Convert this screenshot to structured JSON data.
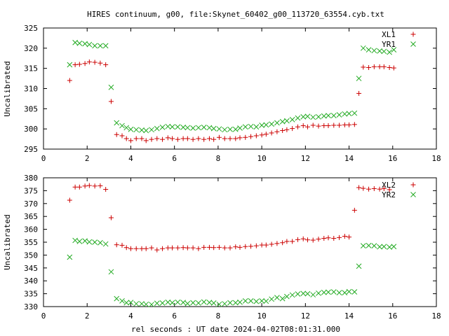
{
  "title": "HIRES continuum, g00, file:Skynet_60402_g00_113720_63554.cyb.txt",
  "colors": {
    "series_a": "#cc0000",
    "series_b": "#22aa22",
    "axes": "#000000"
  },
  "chart_data": [
    {
      "type": "scatter",
      "ylabel": "Uncalibrated",
      "xlabel": "",
      "xlim": [
        0,
        18
      ],
      "ylim": [
        295,
        325
      ],
      "xticks": [
        "0",
        "2",
        "4",
        "6",
        "8",
        "10",
        "12",
        "14",
        "16",
        "18"
      ],
      "yticks": [
        "295",
        "300",
        "305",
        "310",
        "315",
        "320",
        "325"
      ],
      "grid": false,
      "legend_position": "top-right",
      "series": [
        {
          "name": "XL1",
          "marker": "plus",
          "color": "#cc0000",
          "points": [
            [
              1.2,
              312.0
            ],
            [
              1.45,
              315.9
            ],
            [
              1.65,
              316.0
            ],
            [
              1.9,
              316.2
            ],
            [
              2.1,
              316.6
            ],
            [
              2.35,
              316.5
            ],
            [
              2.6,
              316.3
            ],
            [
              2.85,
              315.9
            ],
            [
              3.1,
              306.8
            ],
            [
              3.35,
              298.6
            ],
            [
              3.6,
              298.3
            ],
            [
              3.8,
              297.6
            ],
            [
              4.0,
              297.1
            ],
            [
              4.25,
              297.6
            ],
            [
              4.5,
              297.6
            ],
            [
              4.7,
              297.1
            ],
            [
              4.95,
              297.4
            ],
            [
              5.2,
              297.6
            ],
            [
              5.45,
              297.4
            ],
            [
              5.7,
              297.8
            ],
            [
              5.9,
              297.6
            ],
            [
              6.15,
              297.4
            ],
            [
              6.4,
              297.6
            ],
            [
              6.6,
              297.6
            ],
            [
              6.85,
              297.4
            ],
            [
              7.1,
              297.6
            ],
            [
              7.35,
              297.4
            ],
            [
              7.6,
              297.6
            ],
            [
              7.8,
              297.4
            ],
            [
              8.05,
              297.9
            ],
            [
              8.3,
              297.6
            ],
            [
              8.55,
              297.6
            ],
            [
              8.8,
              297.6
            ],
            [
              9.0,
              297.8
            ],
            [
              9.25,
              297.9
            ],
            [
              9.5,
              298.1
            ],
            [
              9.75,
              298.3
            ],
            [
              10.0,
              298.5
            ],
            [
              10.2,
              298.7
            ],
            [
              10.45,
              299.0
            ],
            [
              10.7,
              299.3
            ],
            [
              10.95,
              299.6
            ],
            [
              11.15,
              299.8
            ],
            [
              11.4,
              300.1
            ],
            [
              11.65,
              300.5
            ],
            [
              11.9,
              300.8
            ],
            [
              12.1,
              300.5
            ],
            [
              12.35,
              300.9
            ],
            [
              12.6,
              300.7
            ],
            [
              12.85,
              300.8
            ],
            [
              13.05,
              300.8
            ],
            [
              13.3,
              300.9
            ],
            [
              13.55,
              300.9
            ],
            [
              13.8,
              301.0
            ],
            [
              14.0,
              301.0
            ],
            [
              14.25,
              301.1
            ],
            [
              14.45,
              308.8
            ],
            [
              14.65,
              315.3
            ],
            [
              14.9,
              315.2
            ],
            [
              15.15,
              315.4
            ],
            [
              15.4,
              315.4
            ],
            [
              15.6,
              315.4
            ],
            [
              15.85,
              315.2
            ],
            [
              16.05,
              315.1
            ]
          ]
        },
        {
          "name": "YR1",
          "marker": "cross",
          "color": "#22aa22",
          "points": [
            [
              1.2,
              315.9
            ],
            [
              1.45,
              321.4
            ],
            [
              1.65,
              321.2
            ],
            [
              1.9,
              321.1
            ],
            [
              2.1,
              320.9
            ],
            [
              2.35,
              320.6
            ],
            [
              2.6,
              320.6
            ],
            [
              2.85,
              320.6
            ],
            [
              3.1,
              310.3
            ],
            [
              3.35,
              301.5
            ],
            [
              3.6,
              300.8
            ],
            [
              3.8,
              300.3
            ],
            [
              4.0,
              299.9
            ],
            [
              4.25,
              299.8
            ],
            [
              4.5,
              299.7
            ],
            [
              4.7,
              299.6
            ],
            [
              4.95,
              299.8
            ],
            [
              5.2,
              300.1
            ],
            [
              5.45,
              300.4
            ],
            [
              5.7,
              300.6
            ],
            [
              5.9,
              300.5
            ],
            [
              6.15,
              300.5
            ],
            [
              6.4,
              300.4
            ],
            [
              6.6,
              300.3
            ],
            [
              6.85,
              300.2
            ],
            [
              7.1,
              300.3
            ],
            [
              7.35,
              300.4
            ],
            [
              7.6,
              300.3
            ],
            [
              7.8,
              300.1
            ],
            [
              8.05,
              300.0
            ],
            [
              8.3,
              299.8
            ],
            [
              8.55,
              299.9
            ],
            [
              8.8,
              299.9
            ],
            [
              9.0,
              300.2
            ],
            [
              9.25,
              300.5
            ],
            [
              9.5,
              300.6
            ],
            [
              9.75,
              300.5
            ],
            [
              10.0,
              300.9
            ],
            [
              10.2,
              301.0
            ],
            [
              10.45,
              301.2
            ],
            [
              10.7,
              301.5
            ],
            [
              10.95,
              301.8
            ],
            [
              11.15,
              302.0
            ],
            [
              11.4,
              302.3
            ],
            [
              11.65,
              302.7
            ],
            [
              11.9,
              303.0
            ],
            [
              12.1,
              303.1
            ],
            [
              12.35,
              302.9
            ],
            [
              12.6,
              303.0
            ],
            [
              12.85,
              303.2
            ],
            [
              13.05,
              303.3
            ],
            [
              13.3,
              303.3
            ],
            [
              13.55,
              303.5
            ],
            [
              13.8,
              303.7
            ],
            [
              14.0,
              303.8
            ],
            [
              14.25,
              303.9
            ],
            [
              14.45,
              312.5
            ],
            [
              14.65,
              320.0
            ],
            [
              14.9,
              319.6
            ],
            [
              15.15,
              319.4
            ],
            [
              15.4,
              319.3
            ],
            [
              15.6,
              319.2
            ],
            [
              15.85,
              319.0
            ],
            [
              16.05,
              319.6
            ]
          ]
        }
      ]
    },
    {
      "type": "scatter",
      "ylabel": "Uncalibrated",
      "xlabel": "rel seconds : UT date 2024-04-02T08:01:31.000",
      "xlim": [
        0,
        18
      ],
      "ylim": [
        330,
        380
      ],
      "xticks": [
        "0",
        "2",
        "4",
        "6",
        "8",
        "10",
        "12",
        "14",
        "16",
        "18"
      ],
      "yticks": [
        "330",
        "335",
        "340",
        "345",
        "350",
        "355",
        "360",
        "365",
        "370",
        "375",
        "380"
      ],
      "grid": false,
      "legend_position": "top-right",
      "series": [
        {
          "name": "XL2",
          "marker": "plus",
          "color": "#cc0000",
          "points": [
            [
              1.2,
              371.3
            ],
            [
              1.45,
              376.4
            ],
            [
              1.65,
              376.4
            ],
            [
              1.9,
              376.8
            ],
            [
              2.1,
              377.0
            ],
            [
              2.35,
              376.8
            ],
            [
              2.6,
              376.9
            ],
            [
              2.85,
              375.5
            ],
            [
              3.1,
              364.5
            ],
            [
              3.35,
              354.0
            ],
            [
              3.6,
              353.8
            ],
            [
              3.8,
              352.9
            ],
            [
              4.0,
              352.5
            ],
            [
              4.25,
              352.5
            ],
            [
              4.5,
              352.5
            ],
            [
              4.7,
              352.5
            ],
            [
              4.95,
              352.8
            ],
            [
              5.2,
              352.0
            ],
            [
              5.45,
              352.5
            ],
            [
              5.7,
              352.8
            ],
            [
              5.9,
              352.8
            ],
            [
              6.15,
              352.8
            ],
            [
              6.4,
              352.9
            ],
            [
              6.6,
              352.8
            ],
            [
              6.85,
              352.8
            ],
            [
              7.1,
              352.5
            ],
            [
              7.35,
              353.0
            ],
            [
              7.6,
              353.0
            ],
            [
              7.8,
              352.9
            ],
            [
              8.05,
              353.0
            ],
            [
              8.3,
              352.8
            ],
            [
              8.55,
              352.8
            ],
            [
              8.8,
              353.2
            ],
            [
              9.0,
              353.0
            ],
            [
              9.25,
              353.3
            ],
            [
              9.5,
              353.4
            ],
            [
              9.75,
              353.6
            ],
            [
              10.0,
              353.9
            ],
            [
              10.2,
              353.9
            ],
            [
              10.45,
              354.2
            ],
            [
              10.7,
              354.5
            ],
            [
              10.95,
              354.8
            ],
            [
              11.15,
              355.3
            ],
            [
              11.4,
              355.3
            ],
            [
              11.65,
              356.0
            ],
            [
              11.9,
              356.3
            ],
            [
              12.1,
              355.9
            ],
            [
              12.35,
              355.8
            ],
            [
              12.6,
              356.2
            ],
            [
              12.85,
              356.5
            ],
            [
              13.05,
              356.7
            ],
            [
              13.3,
              356.5
            ],
            [
              13.55,
              356.8
            ],
            [
              13.8,
              357.3
            ],
            [
              14.0,
              357.0
            ],
            [
              14.25,
              367.4
            ],
            [
              14.45,
              376.2
            ],
            [
              14.65,
              375.9
            ],
            [
              14.9,
              375.6
            ],
            [
              15.15,
              375.8
            ],
            [
              15.4,
              375.6
            ],
            [
              15.6,
              375.8
            ],
            [
              15.85,
              375.4
            ]
          ]
        },
        {
          "name": "YR2",
          "marker": "cross",
          "color": "#22aa22",
          "points": [
            [
              1.2,
              349.2
            ],
            [
              1.45,
              355.7
            ],
            [
              1.65,
              355.3
            ],
            [
              1.9,
              355.5
            ],
            [
              2.1,
              355.1
            ],
            [
              2.35,
              355.0
            ],
            [
              2.6,
              354.8
            ],
            [
              2.85,
              354.3
            ],
            [
              3.1,
              343.5
            ],
            [
              3.35,
              333.1
            ],
            [
              3.6,
              332.2
            ],
            [
              3.8,
              331.5
            ],
            [
              4.0,
              331.6
            ],
            [
              4.25,
              331.1
            ],
            [
              4.5,
              331.1
            ],
            [
              4.7,
              330.9
            ],
            [
              4.95,
              330.8
            ],
            [
              5.2,
              331.3
            ],
            [
              5.45,
              331.4
            ],
            [
              5.7,
              331.7
            ],
            [
              5.9,
              331.5
            ],
            [
              6.15,
              331.7
            ],
            [
              6.4,
              331.6
            ],
            [
              6.6,
              331.2
            ],
            [
              6.85,
              331.5
            ],
            [
              7.1,
              331.4
            ],
            [
              7.35,
              331.8
            ],
            [
              7.6,
              331.6
            ],
            [
              7.8,
              331.4
            ],
            [
              8.05,
              330.9
            ],
            [
              8.3,
              331.1
            ],
            [
              8.55,
              331.5
            ],
            [
              8.8,
              331.5
            ],
            [
              9.0,
              331.7
            ],
            [
              9.25,
              332.2
            ],
            [
              9.5,
              332.2
            ],
            [
              9.75,
              332.0
            ],
            [
              10.0,
              332.2
            ],
            [
              10.2,
              332.1
            ],
            [
              10.45,
              332.9
            ],
            [
              10.7,
              333.5
            ],
            [
              10.95,
              333.1
            ],
            [
              11.15,
              333.9
            ],
            [
              11.4,
              334.5
            ],
            [
              11.65,
              334.9
            ],
            [
              11.9,
              335.1
            ],
            [
              12.1,
              335.0
            ],
            [
              12.35,
              334.6
            ],
            [
              12.6,
              335.2
            ],
            [
              12.85,
              335.5
            ],
            [
              13.05,
              335.6
            ],
            [
              13.3,
              335.7
            ],
            [
              13.55,
              335.4
            ],
            [
              13.8,
              335.4
            ],
            [
              14.0,
              335.8
            ],
            [
              14.25,
              335.7
            ],
            [
              14.45,
              345.7
            ],
            [
              14.65,
              353.6
            ],
            [
              14.9,
              353.7
            ],
            [
              15.15,
              353.6
            ],
            [
              15.4,
              353.2
            ],
            [
              15.6,
              353.3
            ],
            [
              15.85,
              353.1
            ],
            [
              16.05,
              353.3
            ]
          ]
        }
      ]
    }
  ]
}
